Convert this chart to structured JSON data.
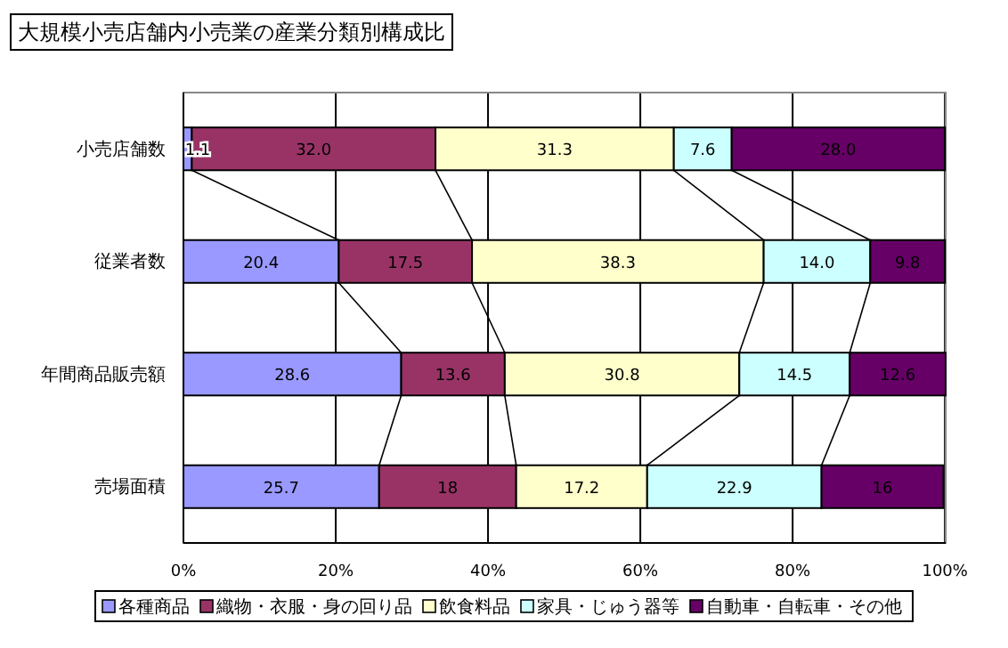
{
  "chart_data": {
    "type": "bar",
    "orientation": "horizontal",
    "stacked": true,
    "title": "大規模小売店舗内小売業の産業分類別構成比",
    "categories": [
      "小売店舗数",
      "従業者数",
      "年間商品販売額",
      "売場面積"
    ],
    "series": [
      {
        "name": "各種商品",
        "color": "#9999ff",
        "values": [
          1.1,
          20.4,
          28.6,
          25.7
        ],
        "value_labels": [
          "1.1",
          "20.4",
          "28.6",
          "25.7"
        ]
      },
      {
        "name": "織物・衣服・身の回り品",
        "color": "#993366",
        "values": [
          32.0,
          17.5,
          13.6,
          18
        ],
        "value_labels": [
          "32.0",
          "17.5",
          "13.6",
          "18"
        ]
      },
      {
        "name": "飲食料品",
        "color": "#ffffcc",
        "values": [
          31.3,
          38.3,
          30.8,
          17.2
        ],
        "value_labels": [
          "31.3",
          "38.3",
          "30.8",
          "17.2"
        ]
      },
      {
        "name": "家具・じゅう器等",
        "color": "#ccffff",
        "values": [
          7.6,
          14.0,
          14.5,
          22.9
        ],
        "value_labels": [
          "7.6",
          "14.0",
          "14.5",
          "22.9"
        ]
      },
      {
        "name": "自動車・自転車・その他",
        "color": "#660066",
        "values": [
          28.0,
          9.8,
          12.6,
          16
        ],
        "value_labels": [
          "28.0",
          "9.8",
          "12.6",
          "16"
        ]
      }
    ],
    "xlim": [
      0,
      100.1
    ],
    "xticks": [
      {
        "value": 0,
        "label": "0%"
      },
      {
        "value": 20,
        "label": "20%"
      },
      {
        "value": 40,
        "label": "40%"
      },
      {
        "value": 60,
        "label": "60%"
      },
      {
        "value": 80,
        "label": "80%"
      },
      {
        "value": 100,
        "label": "100%"
      }
    ],
    "grid": "x",
    "legend": "bottom"
  }
}
